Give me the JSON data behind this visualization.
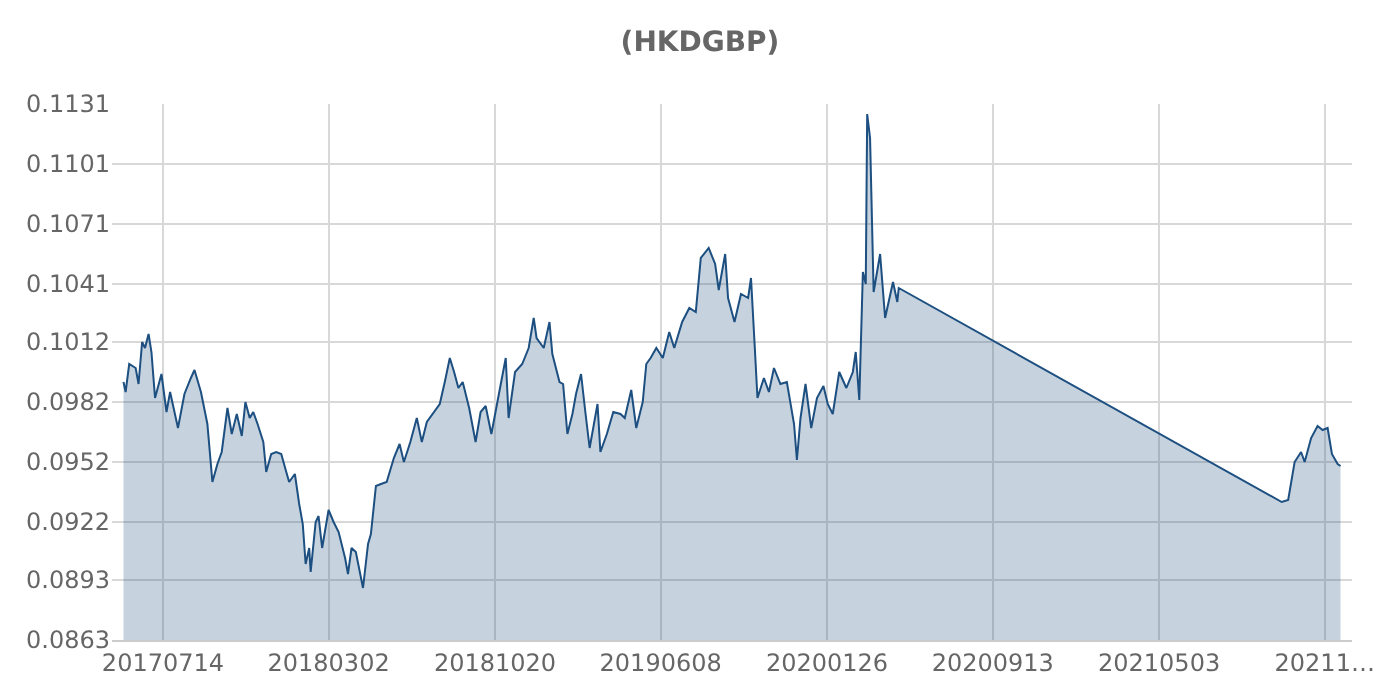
{
  "chart_data": {
    "type": "area",
    "title": "(HKDGBP)",
    "x": [
      "2017-05-20",
      "2017-05-23",
      "2017-05-28",
      "2017-06-06",
      "2017-06-10",
      "2017-06-15",
      "2017-06-19",
      "2017-06-24",
      "2017-06-28",
      "2017-07-03",
      "2017-07-12",
      "2017-07-19",
      "2017-07-24",
      "2017-08-04",
      "2017-08-13",
      "2017-08-22",
      "2017-08-27",
      "2017-09-05",
      "2017-09-14",
      "2017-09-21",
      "2017-09-28",
      "2017-10-04",
      "2017-10-12",
      "2017-10-18",
      "2017-10-25",
      "2017-11-01",
      "2017-11-06",
      "2017-11-12",
      "2017-11-17",
      "2017-11-23",
      "2017-12-01",
      "2017-12-05",
      "2017-12-12",
      "2017-12-19",
      "2017-12-26",
      "2018-01-02",
      "2018-01-06",
      "2018-01-14",
      "2018-01-20",
      "2018-01-25",
      "2018-01-29",
      "2018-02-03",
      "2018-02-05",
      "2018-02-12",
      "2018-02-16",
      "2018-02-21",
      "2018-03-02",
      "2018-03-09",
      "2018-03-16",
      "2018-03-25",
      "2018-03-29",
      "2018-04-03",
      "2018-04-09",
      "2018-04-19",
      "2018-04-26",
      "2018-04-30",
      "2018-05-07",
      "2018-05-14",
      "2018-05-22",
      "2018-06-01",
      "2018-06-09",
      "2018-06-15",
      "2018-06-24",
      "2018-07-03",
      "2018-07-10",
      "2018-07-17",
      "2018-08-04",
      "2018-08-11",
      "2018-08-18",
      "2018-08-24",
      "2018-08-30",
      "2018-09-05",
      "2018-09-14",
      "2018-09-23",
      "2018-09-30",
      "2018-10-07",
      "2018-10-15",
      "2018-10-26",
      "2018-11-04",
      "2018-11-08",
      "2018-11-17",
      "2018-11-27",
      "2018-12-06",
      "2018-12-13",
      "2018-12-17",
      "2018-12-27",
      "2019-01-04",
      "2019-01-08",
      "2019-01-18",
      "2019-01-23",
      "2019-01-29",
      "2019-02-05",
      "2019-02-10",
      "2019-02-17",
      "2019-02-23",
      "2019-03-01",
      "2019-03-07",
      "2019-03-12",
      "2019-03-16",
      "2019-03-25",
      "2019-04-03",
      "2019-04-13",
      "2019-04-19",
      "2019-04-28",
      "2019-05-05",
      "2019-05-14",
      "2019-05-19",
      "2019-05-25",
      "2019-06-02",
      "2019-06-11",
      "2019-06-20",
      "2019-06-27",
      "2019-07-08",
      "2019-07-18",
      "2019-07-27",
      "2019-08-03",
      "2019-08-14",
      "2019-08-23",
      "2019-08-28",
      "2019-09-06",
      "2019-09-10",
      "2019-09-19",
      "2019-09-28",
      "2019-10-08",
      "2019-10-12",
      "2019-10-17",
      "2019-10-21",
      "2019-10-30",
      "2019-11-06",
      "2019-11-13",
      "2019-11-22",
      "2019-12-01",
      "2019-12-11",
      "2019-12-15",
      "2019-12-20",
      "2019-12-27",
      "2020-01-04",
      "2020-01-12",
      "2020-01-21",
      "2020-01-27",
      "2020-02-03",
      "2020-02-12",
      "2020-02-22",
      "2020-03-02",
      "2020-03-06",
      "2020-03-11",
      "2020-03-16",
      "2020-03-20",
      "2020-03-22",
      "2020-03-26",
      "2020-03-31",
      "2020-04-09",
      "2020-04-16",
      "2020-04-27",
      "2020-05-03",
      "2020-05-05",
      "2021-10-21",
      "2021-10-30",
      "2021-11-08",
      "2021-11-17",
      "2021-11-22",
      "2021-12-01",
      "2021-12-10",
      "2021-12-17",
      "2021-12-24",
      "2021-12-30",
      "2022-01-07",
      "2022-01-11"
    ],
    "series": [
      {
        "color": "#1d4f80",
        "values": [
          0.0992,
          0.0987,
          0.1001,
          0.0999,
          0.0991,
          0.1012,
          0.1009,
          0.1016,
          0.1007,
          0.0984,
          0.0996,
          0.0977,
          0.0987,
          0.0969,
          0.0986,
          0.0994,
          0.0998,
          0.0987,
          0.0971,
          0.0942,
          0.0951,
          0.0957,
          0.0979,
          0.0966,
          0.0976,
          0.0965,
          0.0982,
          0.0974,
          0.0977,
          0.0971,
          0.0962,
          0.0947,
          0.0956,
          0.0957,
          0.0956,
          0.0947,
          0.0942,
          0.0946,
          0.0931,
          0.0921,
          0.0901,
          0.0909,
          0.0897,
          0.0922,
          0.0925,
          0.0909,
          0.0928,
          0.0922,
          0.0917,
          0.0904,
          0.0896,
          0.0909,
          0.0907,
          0.0889,
          0.0911,
          0.0916,
          0.094,
          0.0941,
          0.0942,
          0.0954,
          0.0961,
          0.0952,
          0.0962,
          0.0974,
          0.0962,
          0.0972,
          0.0981,
          0.0992,
          0.1004,
          0.0997,
          0.0989,
          0.0992,
          0.0979,
          0.0962,
          0.0977,
          0.098,
          0.0966,
          0.0987,
          0.1004,
          0.0974,
          0.0997,
          0.1001,
          0.1009,
          0.1024,
          0.1014,
          0.1009,
          0.1022,
          0.1006,
          0.0992,
          0.0991,
          0.0966,
          0.0976,
          0.0986,
          0.0996,
          0.0977,
          0.0959,
          0.0971,
          0.0981,
          0.0957,
          0.0966,
          0.0977,
          0.0976,
          0.0974,
          0.0988,
          0.0969,
          0.0982,
          0.1001,
          0.1004,
          0.1009,
          0.1004,
          0.1017,
          0.1009,
          0.1022,
          0.1029,
          0.1027,
          0.1054,
          0.1059,
          0.1051,
          0.1038,
          0.1056,
          0.1034,
          0.1022,
          0.1036,
          0.1034,
          0.1044,
          0.1011,
          0.0984,
          0.0994,
          0.0987,
          0.0999,
          0.0991,
          0.0992,
          0.0971,
          0.0953,
          0.0974,
          0.0991,
          0.0969,
          0.0984,
          0.099,
          0.0981,
          0.0976,
          0.0997,
          0.0989,
          0.0997,
          0.1007,
          0.0983,
          0.1047,
          0.1041,
          0.1126,
          0.1114,
          0.1037,
          0.1056,
          0.1024,
          0.1042,
          0.1032,
          0.1039,
          0.0932,
          0.0933,
          0.0952,
          0.0957,
          0.0952,
          0.0964,
          0.097,
          0.0968,
          0.0969,
          0.0956,
          0.0951,
          0.095
        ]
      }
    ],
    "xlim": [
      "2017-05-04",
      "2022-01-27"
    ],
    "xticks": [
      {
        "value": "2017-07-14",
        "label": "20170714"
      },
      {
        "value": "2018-03-02",
        "label": "20180302"
      },
      {
        "value": "2018-10-20",
        "label": "20181020"
      },
      {
        "value": "2019-06-08",
        "label": "20190608"
      },
      {
        "value": "2020-01-26",
        "label": "20200126"
      },
      {
        "value": "2020-09-13",
        "label": "20200913"
      },
      {
        "value": "2021-05-03",
        "label": "20210503"
      },
      {
        "value": "2021-12-20",
        "label": "20211…"
      }
    ],
    "ylim": [
      0.0863,
      0.1131
    ],
    "yticks": [
      0.0863,
      0.0893,
      0.0922,
      0.0952,
      0.0982,
      0.1012,
      0.1041,
      0.1071,
      0.1101,
      0.1131
    ],
    "grid": true,
    "legend": false
  }
}
